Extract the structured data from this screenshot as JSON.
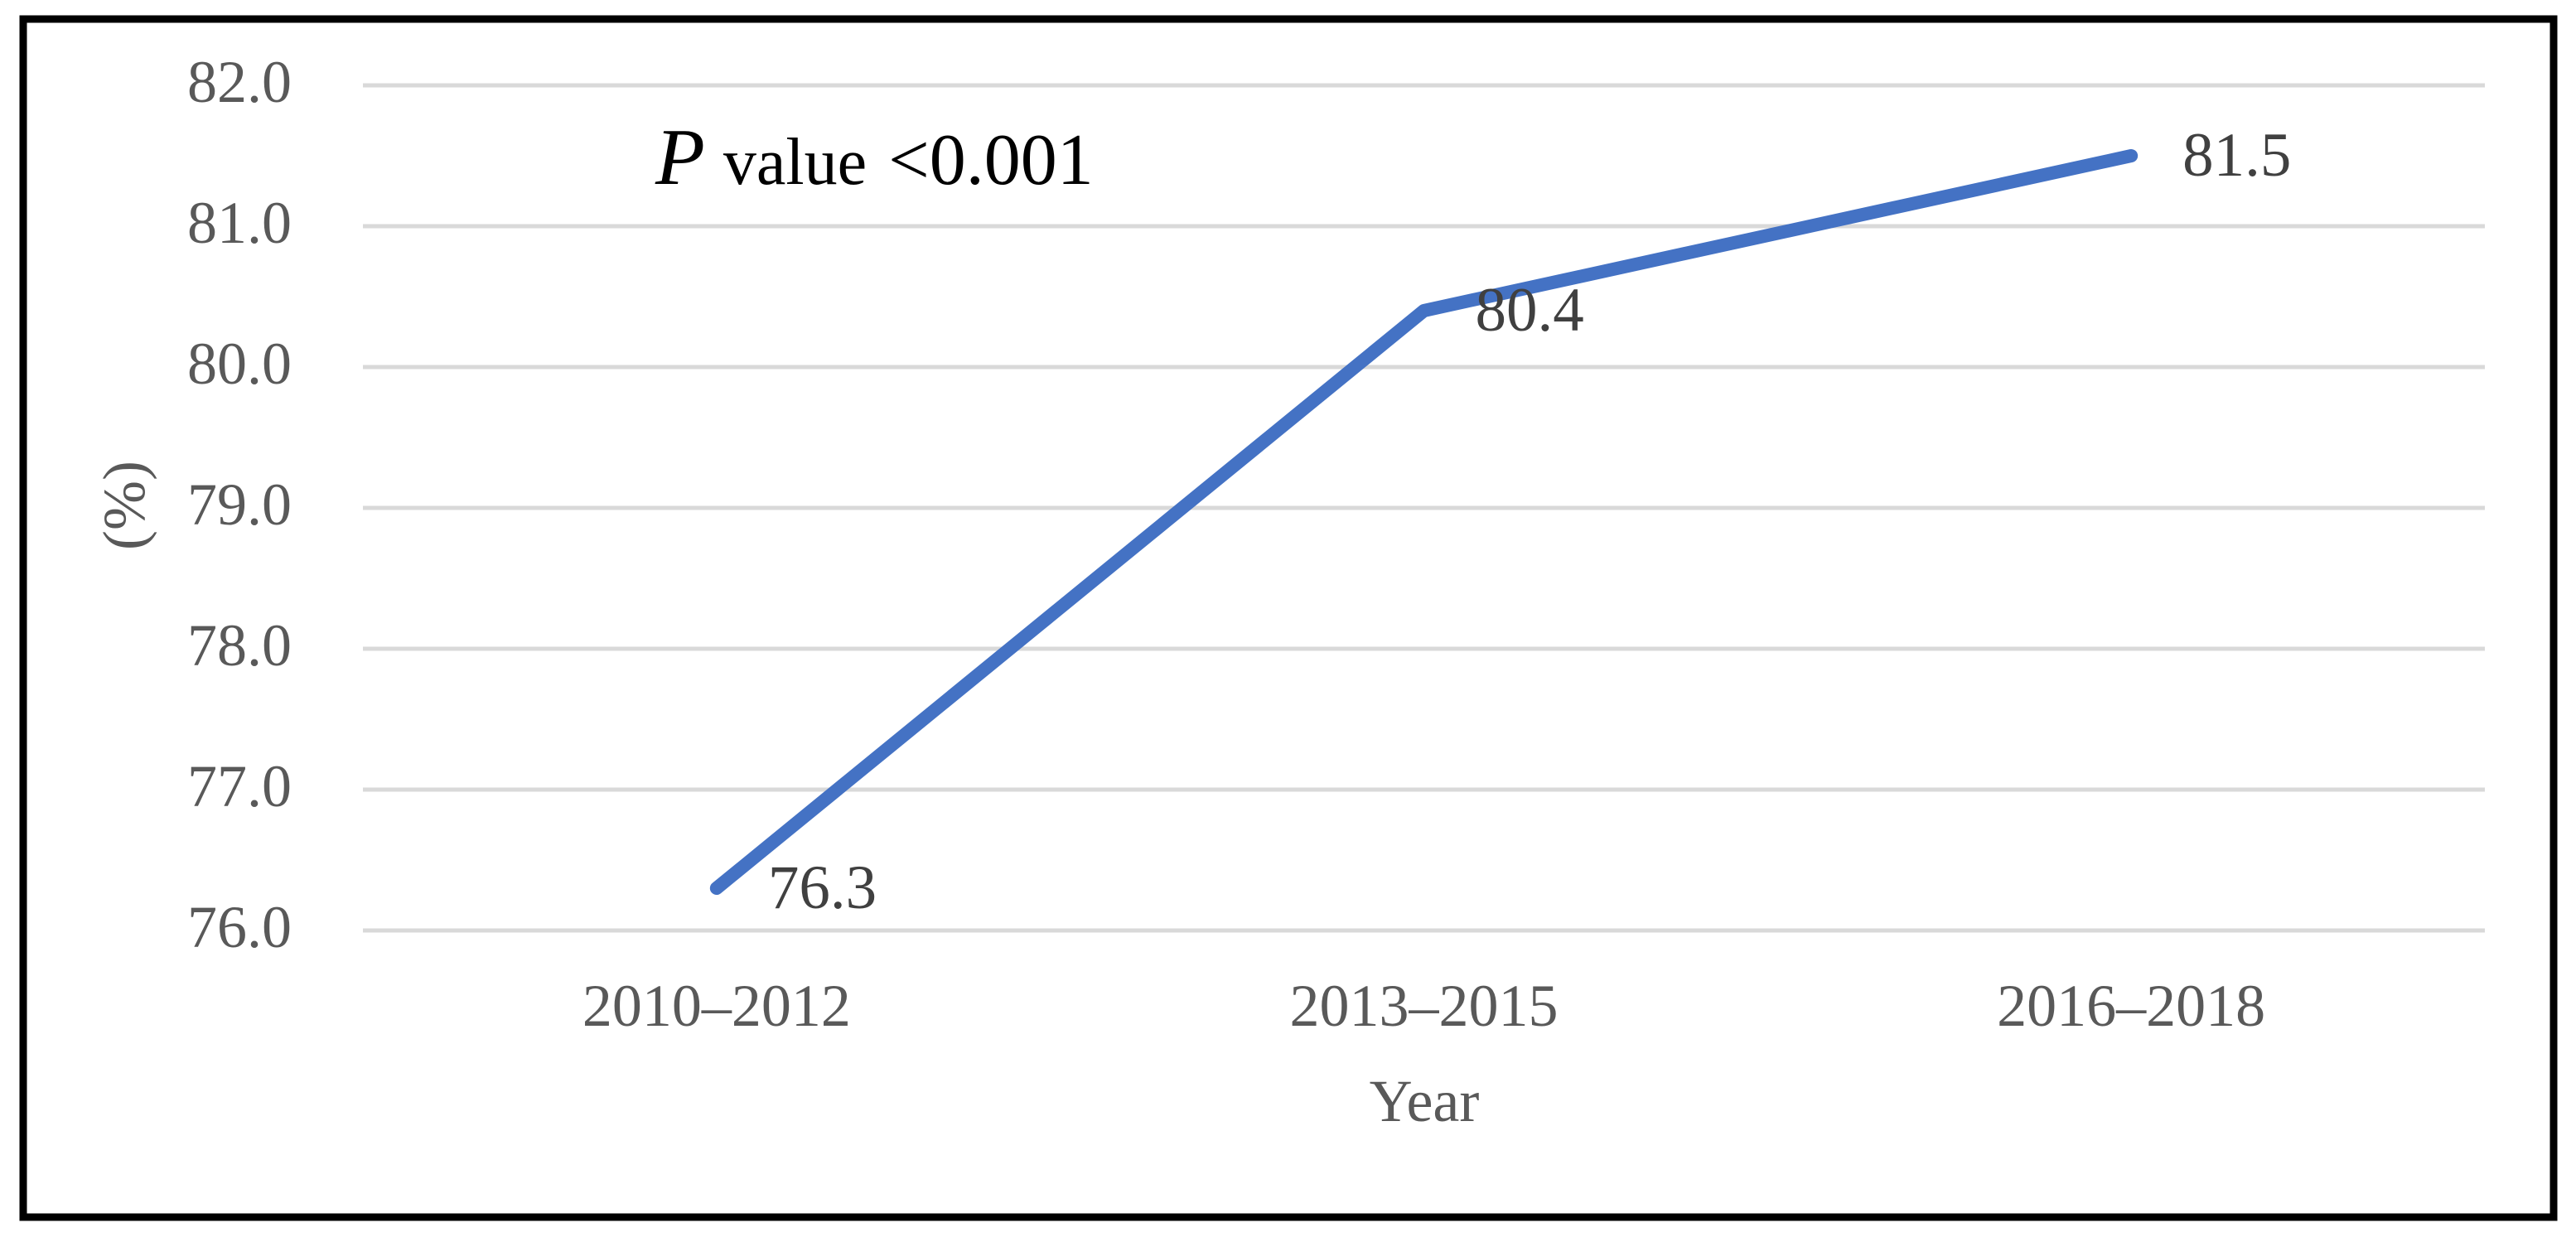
{
  "chart_data": {
    "type": "line",
    "title": "",
    "xlabel": "Year",
    "ylabel": "(%)",
    "categories": [
      "2010–2012",
      "2013–2015",
      "2016–2018"
    ],
    "series": [
      {
        "name": "",
        "values": [
          76.3,
          80.4,
          81.5
        ]
      }
    ],
    "data_labels": [
      "76.3",
      "80.4",
      "81.5"
    ],
    "ylim": [
      76.0,
      82.0
    ],
    "ytick_step": 1.0,
    "ytick_labels": [
      "82.0",
      "81.0",
      "80.0",
      "79.0",
      "78.0",
      "77.0",
      "76.0"
    ],
    "grid": true,
    "legend": "none",
    "annotation": {
      "prefix_italic": "P",
      "middle": "value",
      "value": "<0.001",
      "full_text": "P value <0.001"
    },
    "colors": {
      "line": "#4472C4",
      "gridline": "#D9D9D9",
      "axis_text": "#595959",
      "data_label_text": "#404040",
      "annotation_text": "#000000",
      "border": "#000000",
      "background": "#FFFFFF"
    }
  }
}
